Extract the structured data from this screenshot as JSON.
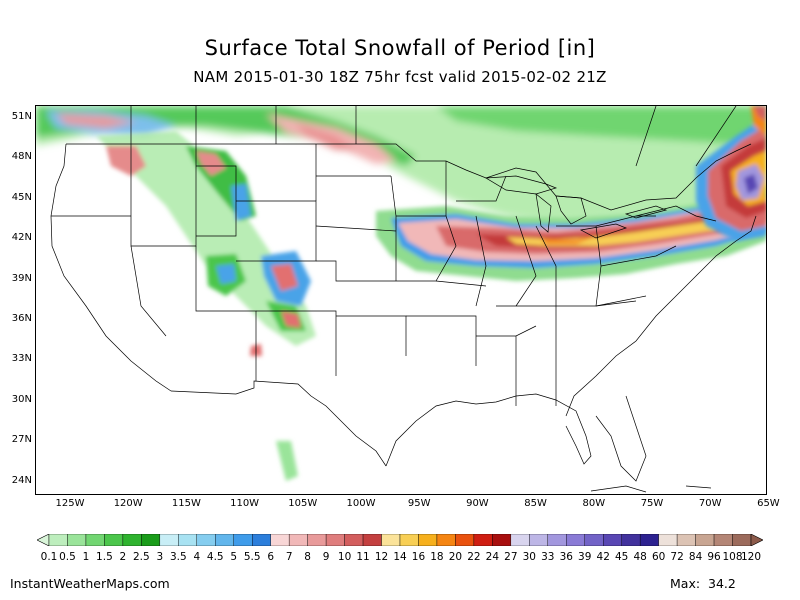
{
  "title": "Surface Total Snowfall of Period [in]",
  "subtitle": "NAM 2015-01-30 18Z 75hr fcst valid 2015-02-02 21Z",
  "lat_labels": [
    "51N",
    "48N",
    "45N",
    "42N",
    "39N",
    "36N",
    "33N",
    "30N",
    "27N",
    "24N"
  ],
  "lon_labels": [
    "125W",
    "120W",
    "115W",
    "110W",
    "105W",
    "100W",
    "95W",
    "90W",
    "85W",
    "80W",
    "75W",
    "70W",
    "65W"
  ],
  "colorbar": {
    "labels": [
      "0.1",
      "0.5",
      "1",
      "1.5",
      "2",
      "2.5",
      "3",
      "3.5",
      "4",
      "4.5",
      "5",
      "5.5",
      "6",
      "7",
      "8",
      "9",
      "10",
      "11",
      "12",
      "14",
      "16",
      "18",
      "20",
      "22",
      "24",
      "27",
      "30",
      "33",
      "36",
      "39",
      "42",
      "45",
      "48",
      "60",
      "72",
      "84",
      "96",
      "108",
      "120"
    ],
    "colors": [
      "#d9f5d9",
      "#bdeebd",
      "#9ae49a",
      "#72d672",
      "#4cc64c",
      "#2fb32f",
      "#1a9c1a",
      "#c8eef6",
      "#a8e2f2",
      "#85cdef",
      "#62b6ec",
      "#3f9cea",
      "#2c7edb",
      "#f8d6d6",
      "#f1b8b8",
      "#e89a9a",
      "#df7d7d",
      "#d35e5e",
      "#c44040",
      "#fbe39a",
      "#f8cf55",
      "#f6b01d",
      "#f58513",
      "#e9520f",
      "#cf1e12",
      "#a80f0f",
      "#d8d4ee",
      "#bdb6e6",
      "#a297de",
      "#8a7bd6",
      "#7263c7",
      "#5947b4",
      "#42329d",
      "#2d2290",
      "#ede1da",
      "#dcc3b4",
      "#c8a592",
      "#b48676",
      "#9c6b5c",
      "#8c5a4a"
    ]
  },
  "footer": {
    "site": "InstantWeatherMaps.com",
    "max_label": "Max:",
    "max_value": "34.2"
  }
}
